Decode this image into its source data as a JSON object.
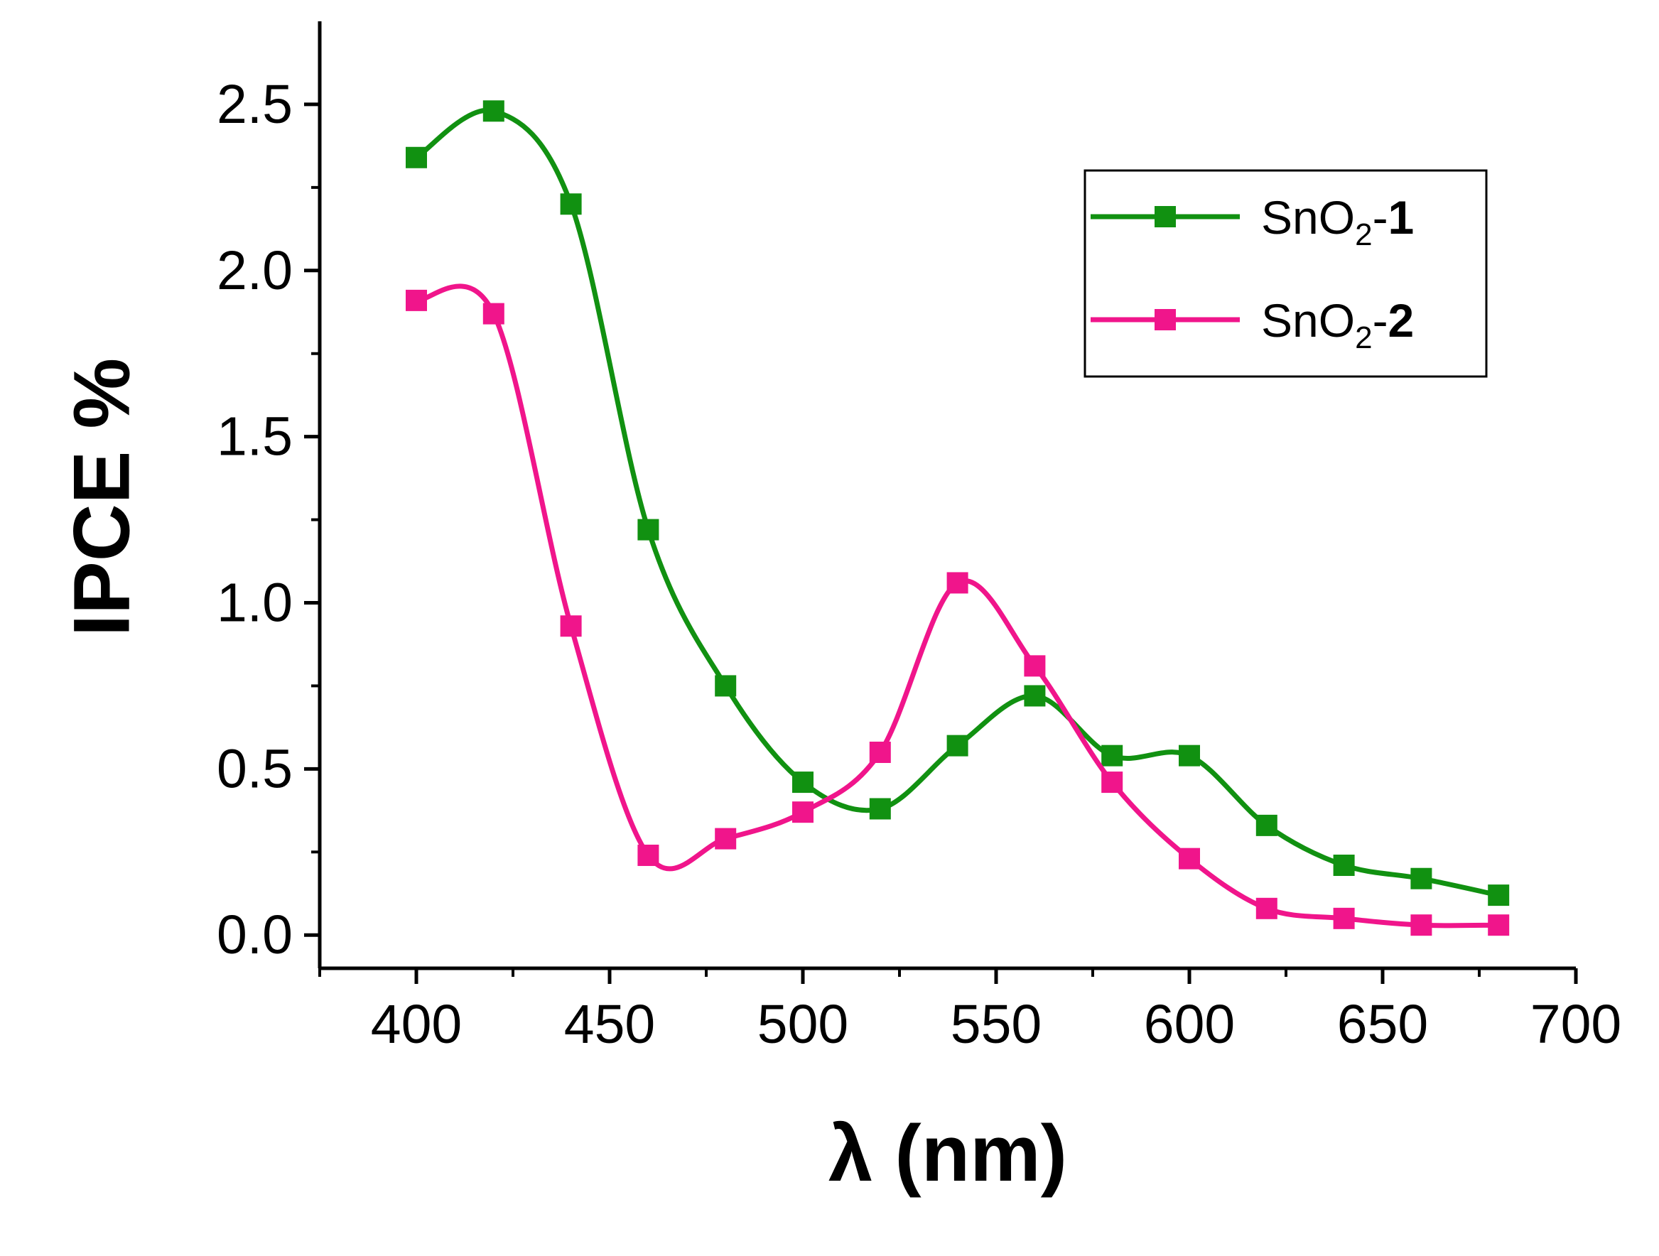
{
  "chart_data": {
    "type": "line",
    "title": "",
    "xlabel": "λ (nm)",
    "ylabel": "IPCE %",
    "xlim": [
      375,
      700
    ],
    "ylim": [
      -0.1,
      2.75
    ],
    "xticks": [
      400,
      450,
      500,
      550,
      600,
      650,
      700
    ],
    "xtick_labels": [
      "400",
      "450",
      "500",
      "550",
      "600",
      "650",
      "700"
    ],
    "yticks": [
      0.0,
      0.5,
      1.0,
      1.5,
      2.0,
      2.5
    ],
    "ytick_labels": [
      "0.0",
      "0.5",
      "1.0",
      "1.5",
      "2.0",
      "2.5"
    ],
    "legend_position": "top-right",
    "x": [
      400,
      420,
      440,
      460,
      480,
      500,
      520,
      540,
      560,
      580,
      600,
      620,
      640,
      660,
      680
    ],
    "series": [
      {
        "name": "SnO2-1",
        "label_base": "SnO",
        "label_sub": "2",
        "label_sep": "-",
        "label_num": "1",
        "color": "#119111",
        "marker": "square",
        "values": [
          2.34,
          2.48,
          2.2,
          1.22,
          0.75,
          0.46,
          0.38,
          0.57,
          0.72,
          0.54,
          0.54,
          0.33,
          0.21,
          0.17,
          0.12
        ]
      },
      {
        "name": "SnO2-2",
        "label_base": "SnO",
        "label_sub": "2",
        "label_sep": "-",
        "label_num": "2",
        "color": "#f0158b",
        "marker": "square",
        "values": [
          1.91,
          1.87,
          0.93,
          0.24,
          0.29,
          0.37,
          0.55,
          1.06,
          0.81,
          0.46,
          0.23,
          0.08,
          0.05,
          0.03,
          0.03
        ]
      }
    ]
  }
}
